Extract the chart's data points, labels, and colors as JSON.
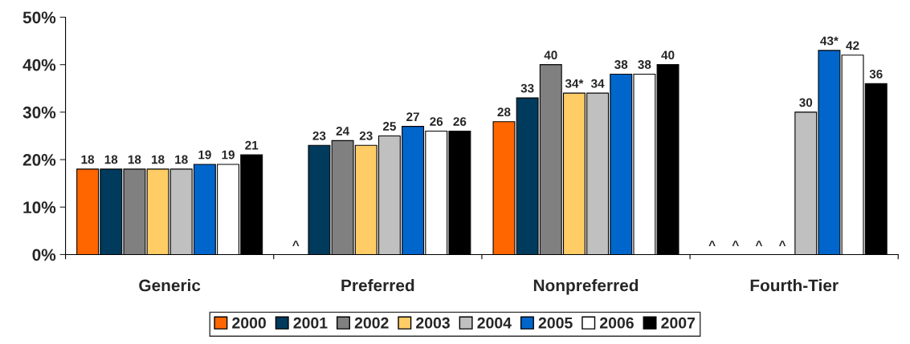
{
  "chart_data": {
    "type": "bar",
    "categories": [
      "Generic",
      "Preferred",
      "Nonpreferred",
      "Fourth-Tier"
    ],
    "ylim": [
      0,
      50
    ],
    "yticks": [
      {
        "value": 0,
        "label": "0%"
      },
      {
        "value": 10,
        "label": "10%"
      },
      {
        "value": 20,
        "label": "20%"
      },
      {
        "value": 30,
        "label": "30%"
      },
      {
        "value": 40,
        "label": "40%"
      },
      {
        "value": 50,
        "label": "50%"
      }
    ],
    "grid": false,
    "legend": "bottom",
    "series": [
      {
        "name": "2000",
        "color": "#ff6600",
        "values": [
          18,
          null,
          28,
          null
        ],
        "value_labels": [
          "18",
          "^",
          "28",
          "^"
        ]
      },
      {
        "name": "2001",
        "color": "#003a5c",
        "values": [
          18,
          23,
          33,
          null
        ],
        "value_labels": [
          "18",
          "23",
          "33",
          "^"
        ]
      },
      {
        "name": "2002",
        "color": "#808080",
        "values": [
          18,
          24,
          40,
          null
        ],
        "value_labels": [
          "18",
          "24",
          "40",
          "^"
        ]
      },
      {
        "name": "2003",
        "color": "#ffcc66",
        "values": [
          18,
          23,
          34,
          null
        ],
        "value_labels": [
          "18",
          "23",
          "34*",
          "^"
        ]
      },
      {
        "name": "2004",
        "color": "#c0c0c0",
        "values": [
          18,
          25,
          34,
          30
        ],
        "value_labels": [
          "18",
          "25",
          "34",
          "30"
        ]
      },
      {
        "name": "2005",
        "color": "#0066cc",
        "values": [
          19,
          27,
          38,
          43
        ],
        "value_labels": [
          "19",
          "27",
          "38",
          "43*"
        ]
      },
      {
        "name": "2006",
        "color": "#ffffff",
        "values": [
          19,
          26,
          38,
          42
        ],
        "value_labels": [
          "19",
          "26",
          "38",
          "42"
        ]
      },
      {
        "name": "2007",
        "color": "#000000",
        "values": [
          21,
          26,
          40,
          36
        ],
        "value_labels": [
          "21",
          "26",
          "40",
          "36"
        ]
      }
    ]
  }
}
